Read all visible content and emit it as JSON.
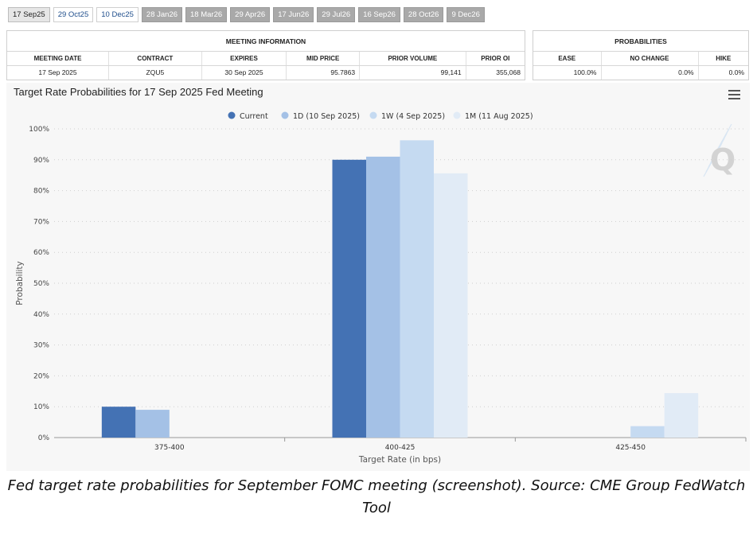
{
  "tabs": [
    {
      "label": "17 Sep25",
      "style": "active"
    },
    {
      "label": "29 Oct25",
      "style": "light"
    },
    {
      "label": "10 Dec25",
      "style": "light"
    },
    {
      "label": "28 Jan26",
      "style": "dark"
    },
    {
      "label": "18 Mar26",
      "style": "dark"
    },
    {
      "label": "29 Apr26",
      "style": "dark"
    },
    {
      "label": "17 Jun26",
      "style": "dark"
    },
    {
      "label": "29 Jul26",
      "style": "dark"
    },
    {
      "label": "16 Sep26",
      "style": "dark"
    },
    {
      "label": "28 Oct26",
      "style": "dark"
    },
    {
      "label": "9 Dec26",
      "style": "dark"
    }
  ],
  "meeting_info": {
    "title": "MEETING INFORMATION",
    "headers": [
      "MEETING DATE",
      "CONTRACT",
      "EXPIRES",
      "MID PRICE",
      "PRIOR VOLUME",
      "PRIOR OI"
    ],
    "values": [
      "17 Sep 2025",
      "ZQU5",
      "30 Sep 2025",
      "95.7863",
      "99,141",
      "355,068"
    ]
  },
  "probabilities": {
    "title": "PROBABILITIES",
    "headers": [
      "EASE",
      "NO CHANGE",
      "HIKE"
    ],
    "values": [
      "100.0%",
      "0.0%",
      "0.0%"
    ]
  },
  "chart_data": {
    "type": "bar",
    "title": "Target Rate Probabilities for 17 Sep 2025 Fed Meeting",
    "xlabel": "Target Rate (in bps)",
    "ylabel": "Probability",
    "categories": [
      "375-400",
      "400-425",
      "425-450"
    ],
    "yticks": [
      "0%",
      "10%",
      "20%",
      "30%",
      "40%",
      "50%",
      "60%",
      "70%",
      "80%",
      "90%",
      "100%"
    ],
    "ylim": [
      0,
      100
    ],
    "grid": true,
    "legend_position": "top-center",
    "series": [
      {
        "name": "Current",
        "color": "#4472b4",
        "values": [
          10,
          90,
          0
        ]
      },
      {
        "name": "1D (10 Sep 2025)",
        "color": "#a4c1e6",
        "values": [
          9,
          91,
          0
        ]
      },
      {
        "name": "1W (4 Sep 2025)",
        "color": "#c5daf1",
        "values": [
          0,
          96.3,
          3.7
        ]
      },
      {
        "name": "1M (11 Aug 2025)",
        "color": "#e1ebf6",
        "values": [
          0,
          85.6,
          14.4
        ]
      }
    ]
  },
  "watermark": "Q",
  "caption": "Fed target rate probabilities for September FOMC meeting (screenshot). Source: CME Group FedWatch Tool"
}
